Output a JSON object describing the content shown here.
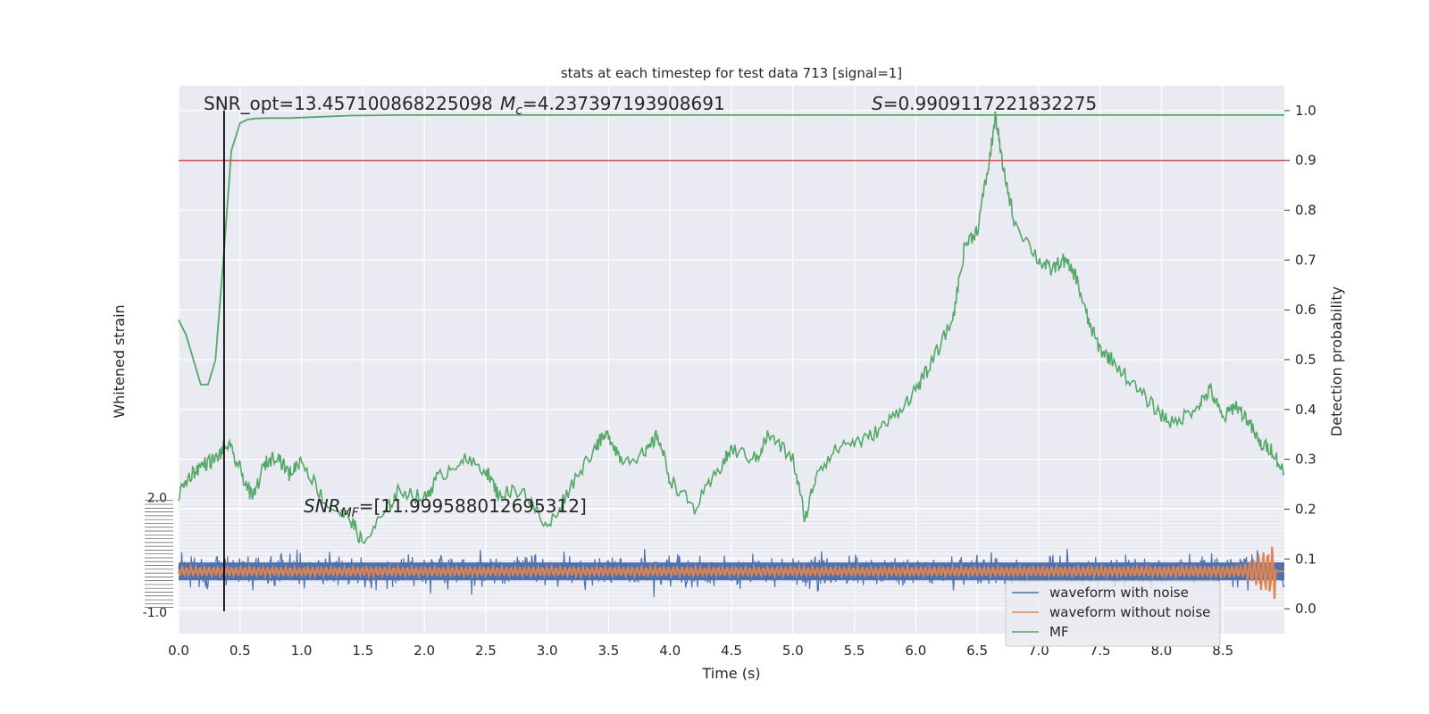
{
  "chart_data": {
    "type": "line",
    "title": "stats at each timestep for test data 713 [signal=1]",
    "xlabel": "Time (s)",
    "ylabel_left": "Whitened strain",
    "ylabel_right": "Detection probability",
    "xlim": [
      0,
      9.0
    ],
    "ylim_right": [
      -0.05,
      1.05
    ],
    "ylim_left": [
      -1.0,
      2.0
    ],
    "x_ticks": [
      "0.0",
      "0.5",
      "1.0",
      "1.5",
      "2.0",
      "2.5",
      "3.0",
      "3.5",
      "4.0",
      "4.5",
      "5.0",
      "5.5",
      "6.0",
      "6.5",
      "7.0",
      "7.5",
      "8.0",
      "8.5"
    ],
    "y_ticks_right": [
      "0.0",
      "0.1",
      "0.2",
      "0.3",
      "0.4",
      "0.5",
      "0.6",
      "0.7",
      "0.8",
      "0.9",
      "1.0"
    ],
    "y_ticks_left": [
      "-1.0",
      "2.0"
    ],
    "grid": true,
    "legend_position": "lower-right",
    "legend": [
      "waveform with noise",
      "waveform without noise",
      "MF"
    ],
    "annotations": {
      "snr_opt": "SNR_opt=13.457100868225098",
      "mc": "=4.237397193908691",
      "s_value": "=0.9909117221832275",
      "snr_mf": "=[11.999588012695312]"
    },
    "threshold": 0.9,
    "marker_time": 0.37,
    "series": [
      {
        "name": "waveform with noise",
        "color": "#4c72b0",
        "description": "noisy whitened strain around 0"
      },
      {
        "name": "waveform without noise",
        "color": "#dd8452",
        "description": "clean waveform chirp ending near 8.93 s"
      },
      {
        "name": "MF",
        "color": "#55a868",
        "x": [
          0.0,
          0.1,
          0.2,
          0.3,
          0.4,
          0.5,
          0.6,
          0.7,
          0.8,
          0.9,
          1.0,
          1.2,
          1.4,
          1.5,
          1.7,
          1.8,
          2.0,
          2.1,
          2.3,
          2.5,
          2.6,
          2.8,
          3.0,
          3.2,
          3.4,
          3.5,
          3.6,
          3.8,
          3.9,
          4.0,
          4.2,
          4.4,
          4.5,
          4.7,
          4.8,
          5.0,
          5.1,
          5.2,
          5.4,
          5.6,
          5.8,
          6.0,
          6.1,
          6.3,
          6.4,
          6.5,
          6.6,
          6.65,
          6.7,
          6.8,
          7.0,
          7.1,
          7.2,
          7.3,
          7.4,
          7.5,
          7.6,
          7.8,
          8.0,
          8.1,
          8.3,
          8.4,
          8.5,
          8.6,
          8.7,
          8.8,
          8.9,
          9.0
        ],
        "values": [
          0.23,
          0.27,
          0.29,
          0.3,
          0.33,
          0.28,
          0.22,
          0.29,
          0.31,
          0.27,
          0.3,
          0.21,
          0.18,
          0.13,
          0.2,
          0.24,
          0.22,
          0.26,
          0.3,
          0.28,
          0.23,
          0.24,
          0.16,
          0.25,
          0.33,
          0.35,
          0.3,
          0.31,
          0.35,
          0.26,
          0.2,
          0.28,
          0.32,
          0.3,
          0.35,
          0.3,
          0.18,
          0.28,
          0.33,
          0.34,
          0.38,
          0.44,
          0.48,
          0.58,
          0.73,
          0.76,
          0.9,
          0.99,
          0.9,
          0.78,
          0.7,
          0.68,
          0.7,
          0.67,
          0.58,
          0.52,
          0.5,
          0.44,
          0.39,
          0.37,
          0.41,
          0.44,
          0.38,
          0.41,
          0.38,
          0.33,
          0.32,
          0.27
        ]
      },
      {
        "name": "Detection probability",
        "color": "#55a868",
        "x": [
          0.0,
          0.06,
          0.18,
          0.24,
          0.3,
          0.37,
          0.43,
          0.5,
          0.56,
          0.62,
          0.7,
          0.9,
          1.1,
          1.4,
          1.8,
          3.0,
          5.0,
          7.0,
          9.0
        ],
        "values": [
          0.58,
          0.55,
          0.45,
          0.45,
          0.5,
          0.72,
          0.92,
          0.975,
          0.982,
          0.984,
          0.985,
          0.985,
          0.987,
          0.99,
          0.991,
          0.991,
          0.991,
          0.991,
          0.991
        ]
      }
    ]
  }
}
